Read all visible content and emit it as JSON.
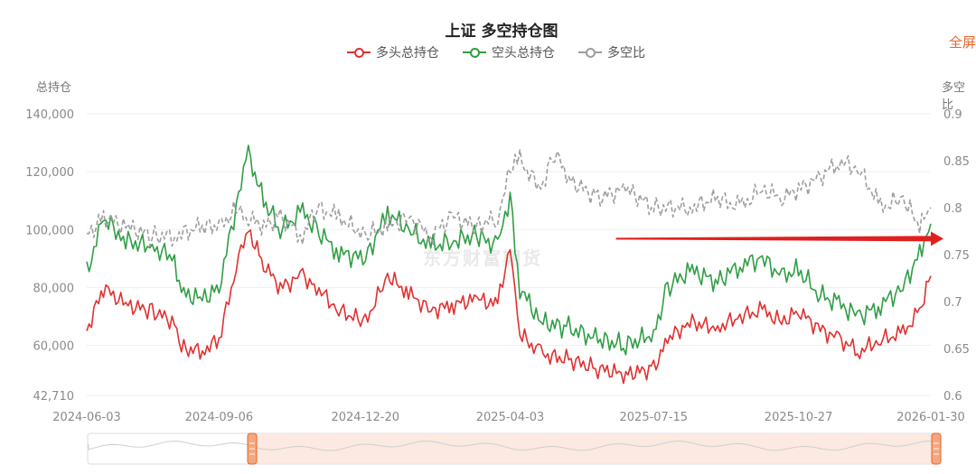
{
  "title": "上证 多空持仓图",
  "fullscreen_label": "全屏",
  "watermark": "东方财富期货",
  "left_axis_name": "总持仓",
  "right_axis_name": "多空比",
  "colors": {
    "long": "#e03131",
    "short": "#2f9e44",
    "ratio": "#9e9e9e",
    "arrow": "#e02020",
    "accent": "#e4662b"
  },
  "chart_data": {
    "type": "line",
    "title": "上证 多空持仓图",
    "x_ticks": [
      "2024-06-03",
      "2024-09-06",
      "2024-12-20",
      "2025-04-03",
      "2025-07-15",
      "2025-10-27",
      "2026-01-30"
    ],
    "x_range": [
      "2024-06-03",
      "2026-01-30"
    ],
    "y_left": {
      "name": "总持仓",
      "min": 42710,
      "max": 140000,
      "ticks": [
        "42,710",
        "60,000",
        "80,000",
        "100,000",
        "120,000",
        "140,000"
      ]
    },
    "y_right": {
      "name": "多空比",
      "min": 0.6,
      "max": 0.9,
      "ticks": [
        "0.6",
        "0.65",
        "0.7",
        "0.75",
        "0.8",
        "0.85",
        "0.9"
      ]
    },
    "legend_position": "top-center",
    "grid": true,
    "series": [
      {
        "name": "多头总持仓",
        "axis": "left",
        "style": "solid",
        "points": [
          [
            "2024-06-03",
            65000
          ],
          [
            "2024-06-15",
            80000
          ],
          [
            "2024-07-01",
            74000
          ],
          [
            "2024-07-20",
            72000
          ],
          [
            "2024-08-05",
            68000
          ],
          [
            "2024-08-10",
            59000
          ],
          [
            "2024-08-25",
            58000
          ],
          [
            "2024-09-06",
            62000
          ],
          [
            "2024-09-20",
            90000
          ],
          [
            "2024-09-27",
            100000
          ],
          [
            "2024-10-08",
            88000
          ],
          [
            "2024-10-20",
            80000
          ],
          [
            "2024-11-05",
            84000
          ],
          [
            "2024-11-15",
            80000
          ],
          [
            "2024-12-01",
            72000
          ],
          [
            "2024-12-20",
            68000
          ],
          [
            "2025-01-05",
            84000
          ],
          [
            "2025-01-20",
            78000
          ],
          [
            "2025-02-05",
            72000
          ],
          [
            "2025-02-20",
            74000
          ],
          [
            "2025-03-10",
            76000
          ],
          [
            "2025-03-25",
            74000
          ],
          [
            "2025-04-03",
            95000
          ],
          [
            "2025-04-10",
            64000
          ],
          [
            "2025-04-25",
            57000
          ],
          [
            "2025-05-15",
            55000
          ],
          [
            "2025-06-05",
            52000
          ],
          [
            "2025-06-25",
            50000
          ],
          [
            "2025-07-15",
            52000
          ],
          [
            "2025-07-25",
            62000
          ],
          [
            "2025-08-10",
            68000
          ],
          [
            "2025-08-30",
            66000
          ],
          [
            "2025-09-15",
            70000
          ],
          [
            "2025-10-01",
            72000
          ],
          [
            "2025-10-15",
            68000
          ],
          [
            "2025-10-27",
            72000
          ],
          [
            "2025-11-10",
            66000
          ],
          [
            "2025-11-25",
            62000
          ],
          [
            "2025-12-10",
            58000
          ],
          [
            "2025-12-25",
            62000
          ],
          [
            "2026-01-10",
            64000
          ],
          [
            "2026-01-22",
            72000
          ],
          [
            "2026-01-30",
            84000
          ]
        ]
      },
      {
        "name": "空头总持仓",
        "axis": "left",
        "style": "solid",
        "points": [
          [
            "2024-06-03",
            85000
          ],
          [
            "2024-06-15",
            104000
          ],
          [
            "2024-07-01",
            96000
          ],
          [
            "2024-07-20",
            94000
          ],
          [
            "2024-08-05",
            90000
          ],
          [
            "2024-08-10",
            78000
          ],
          [
            "2024-08-25",
            76000
          ],
          [
            "2024-09-06",
            80000
          ],
          [
            "2024-09-20",
            112000
          ],
          [
            "2024-09-27",
            126000
          ],
          [
            "2024-10-08",
            110000
          ],
          [
            "2024-10-20",
            100000
          ],
          [
            "2024-11-05",
            106000
          ],
          [
            "2024-11-15",
            100000
          ],
          [
            "2024-12-01",
            92000
          ],
          [
            "2024-12-20",
            90000
          ],
          [
            "2025-01-05",
            106000
          ],
          [
            "2025-01-20",
            100000
          ],
          [
            "2025-02-05",
            94000
          ],
          [
            "2025-02-20",
            96000
          ],
          [
            "2025-03-10",
            98000
          ],
          [
            "2025-03-25",
            94000
          ],
          [
            "2025-04-03",
            112000
          ],
          [
            "2025-04-10",
            80000
          ],
          [
            "2025-04-25",
            68000
          ],
          [
            "2025-05-15",
            66000
          ],
          [
            "2025-06-05",
            62000
          ],
          [
            "2025-06-25",
            60000
          ],
          [
            "2025-07-15",
            64000
          ],
          [
            "2025-07-25",
            80000
          ],
          [
            "2025-08-10",
            86000
          ],
          [
            "2025-08-30",
            82000
          ],
          [
            "2025-09-15",
            88000
          ],
          [
            "2025-10-01",
            90000
          ],
          [
            "2025-10-15",
            84000
          ],
          [
            "2025-10-27",
            86000
          ],
          [
            "2025-11-10",
            78000
          ],
          [
            "2025-11-25",
            74000
          ],
          [
            "2025-12-10",
            70000
          ],
          [
            "2025-12-25",
            74000
          ],
          [
            "2026-01-10",
            80000
          ],
          [
            "2026-01-22",
            92000
          ],
          [
            "2026-01-30",
            102000
          ]
        ]
      },
      {
        "name": "多空比",
        "axis": "right",
        "style": "dashed",
        "points": [
          [
            "2024-06-03",
            0.77
          ],
          [
            "2024-06-15",
            0.79
          ],
          [
            "2024-07-01",
            0.78
          ],
          [
            "2024-07-20",
            0.77
          ],
          [
            "2024-08-05",
            0.77
          ],
          [
            "2024-08-25",
            0.78
          ],
          [
            "2024-09-06",
            0.78
          ],
          [
            "2024-09-20",
            0.8
          ],
          [
            "2024-09-27",
            0.79
          ],
          [
            "2024-10-08",
            0.78
          ],
          [
            "2024-10-20",
            0.79
          ],
          [
            "2024-11-05",
            0.77
          ],
          [
            "2024-11-15",
            0.8
          ],
          [
            "2024-12-01",
            0.79
          ],
          [
            "2024-12-20",
            0.77
          ],
          [
            "2025-01-05",
            0.78
          ],
          [
            "2025-01-20",
            0.79
          ],
          [
            "2025-02-05",
            0.77
          ],
          [
            "2025-02-20",
            0.79
          ],
          [
            "2025-03-10",
            0.78
          ],
          [
            "2025-03-25",
            0.79
          ],
          [
            "2025-04-03",
            0.84
          ],
          [
            "2025-04-10",
            0.85
          ],
          [
            "2025-04-25",
            0.82
          ],
          [
            "2025-05-05",
            0.86
          ],
          [
            "2025-05-15",
            0.83
          ],
          [
            "2025-06-05",
            0.81
          ],
          [
            "2025-06-25",
            0.82
          ],
          [
            "2025-07-15",
            0.8
          ],
          [
            "2025-08-10",
            0.8
          ],
          [
            "2025-08-30",
            0.81
          ],
          [
            "2025-09-15",
            0.8
          ],
          [
            "2025-10-01",
            0.82
          ],
          [
            "2025-10-15",
            0.81
          ],
          [
            "2025-10-27",
            0.82
          ],
          [
            "2025-11-10",
            0.83
          ],
          [
            "2025-11-25",
            0.85
          ],
          [
            "2025-12-10",
            0.84
          ],
          [
            "2025-12-25",
            0.8
          ],
          [
            "2026-01-10",
            0.81
          ],
          [
            "2026-01-22",
            0.78
          ],
          [
            "2026-01-30",
            0.8
          ]
        ]
      }
    ],
    "annotation": {
      "type": "arrow",
      "from": [
        "2025-06-05",
        0.767
      ],
      "to": [
        "2026-01-30",
        0.767
      ]
    }
  }
}
